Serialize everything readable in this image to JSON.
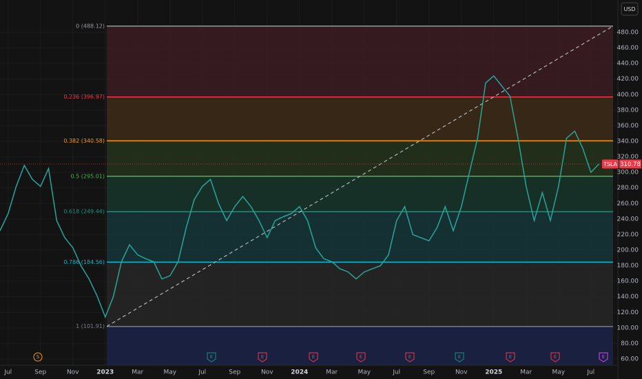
{
  "chart_data": {
    "type": "line",
    "currency": "USD",
    "categories": [
      null,
      "Jul",
      null,
      null,
      null,
      "Sep",
      null,
      null,
      null,
      "Nov",
      null,
      null,
      null,
      "2023",
      null,
      null,
      null,
      "Mar",
      null,
      null,
      null,
      "May",
      null,
      null,
      null,
      "Jul",
      null,
      null,
      null,
      "Sep",
      null,
      null,
      null,
      "Nov",
      null,
      null,
      null,
      "2024",
      null,
      null,
      null,
      "Mar",
      null,
      null,
      null,
      "May",
      null,
      null,
      null,
      "Jul",
      null,
      null,
      null,
      "Sep",
      null,
      null,
      null,
      "Nov",
      null,
      null,
      null,
      "2025",
      null,
      null,
      null,
      "Mar",
      null,
      null,
      null,
      "May",
      null,
      null,
      null,
      "Jul",
      null
    ],
    "series": [
      {
        "name": "TSLA",
        "color": "#26a69a",
        "values": [
          225,
          247,
          282,
          309,
          291,
          282,
          305,
          238,
          216,
          203,
          180,
          163,
          141,
          114,
          140,
          185,
          207,
          194,
          189,
          185,
          163,
          167,
          185,
          229,
          265,
          282,
          291,
          260,
          238,
          256,
          269,
          256,
          238,
          216,
          238,
          243,
          247,
          256,
          238,
          203,
          189,
          185,
          176,
          172,
          163,
          172,
          176,
          180,
          194,
          238,
          256,
          220,
          216,
          212,
          229,
          256,
          225,
          256,
          300,
          344,
          415,
          424,
          411,
          398,
          344,
          282,
          238,
          274,
          238,
          282,
          344,
          353,
          331,
          300,
          310.78
        ]
      }
    ],
    "last_color": "#f23645",
    "fib_levels": [
      {
        "value": 488.12,
        "label": "0 (488.12)",
        "color": "#9598a1",
        "fill": "#3a1d22"
      },
      {
        "value": 396.97,
        "label": "0.236 (396.97)",
        "color": "#f23645",
        "fill": "#3b2a17"
      },
      {
        "value": 340.58,
        "label": "0.382 (340.58)",
        "color": "#ff9800",
        "fill": "#24321c"
      },
      {
        "value": 295.01,
        "label": "0.5 (295.01)",
        "color": "#4caf50",
        "fill": "#17332a"
      },
      {
        "value": 249.44,
        "label": "0.618 (249.44)",
        "color": "#089981",
        "fill": "#163437"
      },
      {
        "value": 184.56,
        "label": "0.786 (184.56)",
        "color": "#00bcd4",
        "fill": "#262626"
      },
      {
        "value": 101.91,
        "label": "1 (101.91)",
        "color": "#787b86",
        "fill": "#1c2246"
      }
    ],
    "events": [
      {
        "label": "S",
        "color": "#ff9800"
      },
      {
        "label": "E",
        "color": "#089981"
      },
      {
        "label": "E",
        "color": "#f23645"
      },
      {
        "label": "E",
        "color": "#f23645"
      },
      {
        "label": "E",
        "color": "#f23645"
      },
      {
        "label": "E",
        "color": "#f23645"
      },
      {
        "label": "E",
        "color": "#089981"
      },
      {
        "label": "E",
        "color": "#f23645"
      },
      {
        "label": "E",
        "color": "#f23645"
      },
      {
        "label": "E",
        "color": "#e040fb"
      }
    ],
    "ylim": [
      60,
      480
    ],
    "yticks": [
      {
        "value": 60,
        "label": "60.00"
      },
      {
        "value": 80,
        "label": "80.00"
      },
      {
        "value": 100,
        "label": "100.00"
      },
      {
        "value": 120,
        "label": "120.00"
      },
      {
        "value": 140,
        "label": "140.00"
      },
      {
        "value": 160,
        "label": "160.00"
      },
      {
        "value": 180,
        "label": "180.00"
      },
      {
        "value": 200,
        "label": "200.00"
      },
      {
        "value": 220,
        "label": "220.00"
      },
      {
        "value": 240,
        "label": "240.00"
      },
      {
        "value": 260,
        "label": "260.00"
      },
      {
        "value": 280,
        "label": "280.00"
      },
      {
        "value": 300,
        "label": "300.00"
      },
      {
        "value": 320,
        "label": "320.00"
      },
      {
        "value": 340,
        "label": "340.00"
      },
      {
        "value": 360,
        "label": "360.00"
      },
      {
        "value": 380,
        "label": "380.00"
      },
      {
        "value": 400,
        "label": "400.00"
      },
      {
        "value": 420,
        "label": "420.00"
      },
      {
        "value": 440,
        "label": "440.00"
      },
      {
        "value": 460,
        "label": "460.00"
      },
      {
        "value": 480,
        "label": "480.00"
      }
    ],
    "grid": true
  }
}
